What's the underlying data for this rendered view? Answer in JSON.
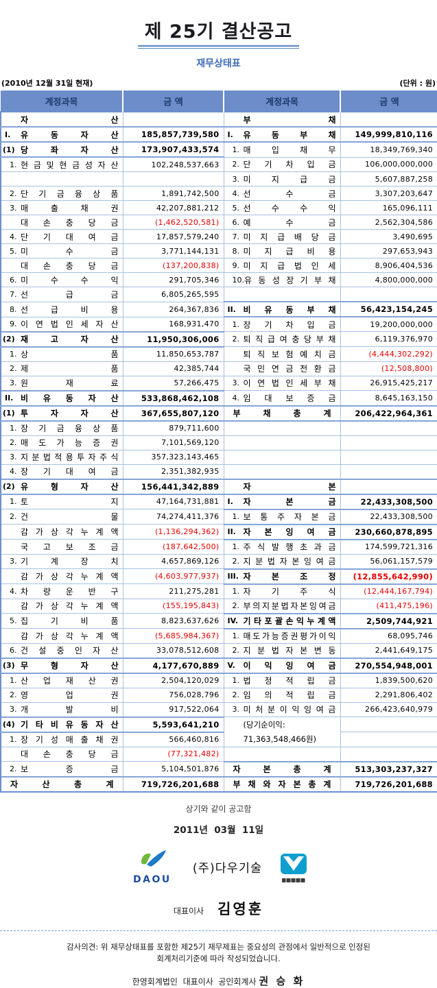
{
  "doc": {
    "title": "제 25기 결산공고",
    "subtitle": "재무상태표",
    "as_of": "(2010년 12월 31일 현재)",
    "unit": "(단위 : 원)"
  },
  "table": {
    "headers": [
      "계정과목",
      "금 액",
      "계정과목",
      "금 액"
    ],
    "rows": [
      {
        "l": {
          "p": "",
          "n": "자산",
          "b": 1,
          "v": ""
        },
        "r": {
          "p": "",
          "n": "부채",
          "b": 1,
          "v": ""
        }
      },
      {
        "l": {
          "p": "I.",
          "n": "유동자산",
          "b": 1,
          "v": "185,857,739,580"
        },
        "r": {
          "p": "I.",
          "n": "유동부채",
          "b": 1,
          "v": "149,999,810,116"
        }
      },
      {
        "l": {
          "p": "(1)",
          "n": "당좌자산",
          "b": 1,
          "v": "173,907,433,574"
        },
        "r": {
          "p": "1.",
          "n": "매입채무",
          "v": "18,349,769,340"
        }
      },
      {
        "l": {
          "p": "1.",
          "n": "현금및현금성자산",
          "v": "102,248,537,663"
        },
        "r": {
          "p": "2.",
          "n": "단기차입금",
          "v": "106,000,000,000"
        }
      },
      {
        "l": {},
        "r": {
          "p": "3.",
          "n": "미지급금",
          "v": "5,607,887,258"
        }
      },
      {
        "l": {
          "p": "2.",
          "n": "단기금융상품",
          "v": "1,891,742,500"
        },
        "r": {
          "p": "4.",
          "n": "선수금",
          "v": "3,307,203,647"
        }
      },
      {
        "l": {
          "p": "3.",
          "n": "매출채권",
          "v": "42,207,881,212"
        },
        "r": {
          "p": "5.",
          "n": "선수수익",
          "v": "165,096,111"
        }
      },
      {
        "l": {
          "p": "",
          "n": "대손충당금",
          "v": "(1,462,520,581)"
        },
        "r": {
          "p": "6.",
          "n": "예수금",
          "v": "2,562,304,586"
        }
      },
      {
        "l": {
          "p": "4.",
          "n": "단기대여금",
          "v": "17,857,579,240"
        },
        "r": {
          "p": "7.",
          "n": "미지급배당금",
          "v": "3,490,695"
        }
      },
      {
        "l": {
          "p": "5.",
          "n": "미수금",
          "v": "3,771,144,131"
        },
        "r": {
          "p": "8.",
          "n": "미지급비용",
          "v": "297,653,943"
        }
      },
      {
        "l": {
          "p": "",
          "n": "대손충당금",
          "v": "(137,200,838)"
        },
        "r": {
          "p": "9.",
          "n": "미지급법인세",
          "v": "8,906,404,536"
        }
      },
      {
        "l": {
          "p": "6.",
          "n": "미수수익",
          "v": "291,705,346"
        },
        "r": {
          "p": "10.",
          "n": "유동성장기부채",
          "v": "4,800,000,000"
        }
      },
      {
        "l": {
          "p": "7.",
          "n": "선급금",
          "v": "6,805,265,595"
        },
        "r": {}
      },
      {
        "l": {
          "p": "8.",
          "n": "선급비용",
          "v": "264,367,836"
        },
        "r": {
          "p": "II.",
          "n": "비유동부채",
          "b": 1,
          "v": "56,423,154,245"
        }
      },
      {
        "l": {
          "p": "9.",
          "n": "이연법인세자산",
          "v": "168,931,470"
        },
        "r": {
          "p": "1.",
          "n": "장기차입금",
          "v": "19,200,000,000"
        }
      },
      {
        "l": {
          "p": "(2)",
          "n": "재고자산",
          "b": 1,
          "v": "11,950,306,006"
        },
        "r": {
          "p": "2.",
          "n": "퇴직급여충당부채",
          "v": "6,119,376,970"
        }
      },
      {
        "l": {
          "p": "1.",
          "n": "상품",
          "v": "11,850,653,787"
        },
        "r": {
          "p": "",
          "n": "퇴직보험예치금",
          "v": "(4,444,302,292)"
        }
      },
      {
        "l": {
          "p": "2.",
          "n": "제품",
          "v": "42,385,744"
        },
        "r": {
          "p": "",
          "n": "국민연금전환금",
          "v": "(12,508,800)"
        }
      },
      {
        "l": {
          "p": "3.",
          "n": "원재료",
          "v": "57,266,475"
        },
        "r": {
          "p": "3.",
          "n": "이연법인세부채",
          "v": "26,915,425,217"
        }
      },
      {
        "l": {
          "p": "II.",
          "n": "비유동자산",
          "b": 1,
          "v": "533,868,462,108"
        },
        "r": {
          "p": "4.",
          "n": "임대보증금",
          "v": "8,645,163,150"
        }
      },
      {
        "l": {
          "p": "(1)",
          "n": "투자자산",
          "b": 1,
          "v": "367,655,807,120"
        },
        "r": {
          "p": "",
          "n": "부채총계",
          "b": 1,
          "f": 1,
          "v": "206,422,964,361"
        }
      },
      {
        "l": {
          "p": "1.",
          "n": "장기금융상품",
          "v": "879,711,600"
        },
        "r": {}
      },
      {
        "l": {
          "p": "2.",
          "n": "매도가능증권",
          "v": "7,101,569,120"
        },
        "r": {}
      },
      {
        "l": {
          "p": "3.",
          "n": "지분법적용투자주식",
          "v": "357,323,143,465"
        },
        "r": {}
      },
      {
        "l": {
          "p": "4.",
          "n": "장기대여금",
          "v": "2,351,382,935"
        },
        "r": {}
      },
      {
        "l": {
          "p": "(2)",
          "n": "유형자산",
          "b": 1,
          "v": "156,441,342,889"
        },
        "r": {
          "p": "",
          "n": "자본",
          "b": 1,
          "v": ""
        }
      },
      {
        "l": {
          "p": "1.",
          "n": "토지",
          "v": "47,164,731,881"
        },
        "r": {
          "p": "I.",
          "n": "자본금",
          "b": 1,
          "v": "22,433,308,500"
        }
      },
      {
        "l": {
          "p": "2.",
          "n": "건물",
          "v": "74,274,411,376"
        },
        "r": {
          "p": "1.",
          "n": "보통주자본금",
          "v": "22,433,308,500"
        }
      },
      {
        "l": {
          "p": "",
          "n": "감가상각누계액",
          "v": "(1,136,294,362)"
        },
        "r": {
          "p": "II.",
          "n": "자본잉여금",
          "b": 1,
          "v": "230,660,878,895"
        }
      },
      {
        "l": {
          "p": "",
          "n": "국고보조금",
          "v": "(187,642,500)"
        },
        "r": {
          "p": "1.",
          "n": "주식발행초과금",
          "v": "174,599,721,316"
        }
      },
      {
        "l": {
          "p": "3.",
          "n": "기계장치",
          "v": "4,657,869,126"
        },
        "r": {
          "p": "2.",
          "n": "지분법자본잉여금",
          "v": "56,061,157,579"
        }
      },
      {
        "l": {
          "p": "",
          "n": "감가상각누계액",
          "v": "(4,603,977,937)"
        },
        "r": {
          "p": "III.",
          "n": "자본조정",
          "b": 1,
          "v": "(12,855,642,990)"
        }
      },
      {
        "l": {
          "p": "4.",
          "n": "차량운반구",
          "v": "211,275,281"
        },
        "r": {
          "p": "1.",
          "n": "자기주식",
          "v": "(12,444,167,794)"
        }
      },
      {
        "l": {
          "p": "",
          "n": "감가상각누계액",
          "v": "(155,195,843)"
        },
        "r": {
          "p": "2.",
          "n": "부의지분법자본잉여금",
          "v": "(411,475,196)"
        }
      },
      {
        "l": {
          "p": "5.",
          "n": "집기비품",
          "v": "8,823,637,626"
        },
        "r": {
          "p": "IV.",
          "n": "기타포괄손익누계액",
          "b": 1,
          "v": "2,509,744,921"
        }
      },
      {
        "l": {
          "p": "",
          "n": "감가상각누계액",
          "v": "(5,685,984,367)"
        },
        "r": {
          "p": "1.",
          "n": "매도가능증권평가이익",
          "v": "68,095,746"
        }
      },
      {
        "l": {
          "p": "6.",
          "n": "건설중인자산",
          "v": "33,078,512,608"
        },
        "r": {
          "p": "2.",
          "n": "지분법자본변동",
          "v": "2,441,649,175"
        }
      },
      {
        "l": {
          "p": "(3)",
          "n": "무형자산",
          "b": 1,
          "v": "4,177,670,889"
        },
        "r": {
          "p": "V.",
          "n": "이익잉여금",
          "b": 1,
          "v": "270,554,948,001"
        }
      },
      {
        "l": {
          "p": "1.",
          "n": "산업재산권",
          "v": "2,504,120,029"
        },
        "r": {
          "p": "1.",
          "n": "법정적립금",
          "v": "1,839,500,620"
        }
      },
      {
        "l": {
          "p": "2.",
          "n": "영업권",
          "v": "756,028,796"
        },
        "r": {
          "p": "2.",
          "n": "임의적립금",
          "v": "2,291,806,402"
        }
      },
      {
        "l": {
          "p": "3.",
          "n": "개발비",
          "v": "917,522,064"
        },
        "r": {
          "p": "3.",
          "n": "미처분이익잉여금",
          "v": "266,423,640,979"
        }
      },
      {
        "l": {
          "p": "(4)",
          "n": "기타비유동자산",
          "b": 1,
          "v": "5,593,641,210"
        },
        "r": {
          "p": "",
          "n": "(당기순이익:",
          "plain": 1,
          "v": ""
        }
      },
      {
        "l": {
          "p": "1.",
          "n": "장기성매출채권",
          "v": "566,460,816"
        },
        "r": {
          "p": "",
          "n": "71,363,548,466원)",
          "plain": 1,
          "merge": 1,
          "v": ""
        }
      },
      {
        "l": {
          "p": "",
          "n": "대손충당금",
          "v": "(77,321,482)"
        },
        "r": {}
      },
      {
        "l": {
          "p": "2.",
          "n": "보증금",
          "v": "5,104,501,876"
        },
        "r": {
          "p": "",
          "n": "자본총계",
          "b": 1,
          "f": 1,
          "v": "513,303,237,327"
        }
      },
      {
        "l": {
          "p": "",
          "n": "자산총계",
          "b": 1,
          "f": 1,
          "v": "719,726,201,688"
        },
        "r": {
          "p": "",
          "n": "부채와자본총계",
          "b": 1,
          "f": 1,
          "v": "719,726,201,688"
        }
      }
    ]
  },
  "footer": {
    "announce": "상기와 같이 공고함",
    "date": "2011년  03월  11일",
    "logo_text": "DAOU",
    "company": "(주)다우기술",
    "ceo_label": "대표이사",
    "ceo_name": "김영훈"
  },
  "audit": {
    "line1": "감사의견: 위 재무상태표를 포함한 제25기 재무제표는 중요성의 관점에서 일반적으로 인정된",
    "line2": "회계처리기준에 따라 작성되었습니다.",
    "firm_line": "한영회계법인  대표이사  공인회계사",
    "accountant": "권 승 화"
  },
  "colors": {
    "header_bg": "#6d8dca",
    "header_text": "#1b3a6b",
    "grid_light": "#a6c1e4",
    "grid_strong": "#84a4d6",
    "outer_border": "#6b8fcf",
    "negative": "#e60000",
    "title_underline": "#5585c0",
    "subtitle_blue": "#3f6cb5",
    "logo_blue": "#1d4f9e",
    "logo_green": "#6fb63c",
    "stamp_blue": "#0e9fce"
  }
}
